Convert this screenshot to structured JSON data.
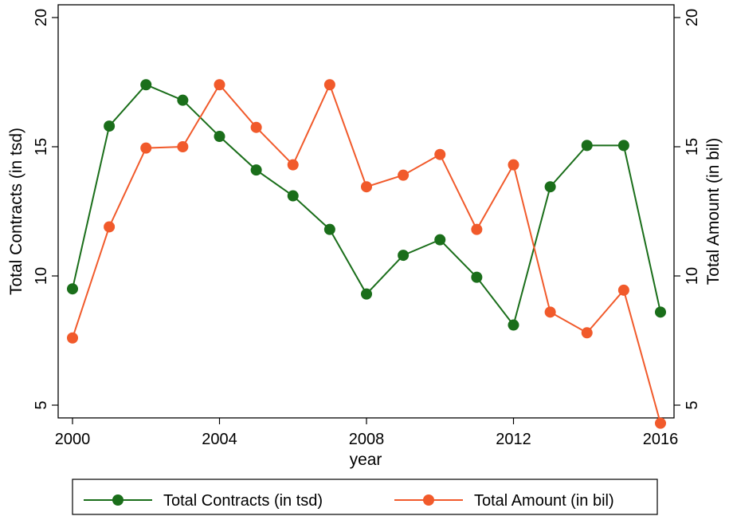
{
  "chart_data": {
    "type": "line",
    "title": "",
    "xlabel": "year",
    "ylabel_left": "Total Contracts (in tsd)",
    "ylabel_right": "Total Amount (in bil)",
    "xlim": [
      2000,
      2016
    ],
    "ylim_left": [
      5,
      20
    ],
    "ylim_right": [
      5,
      20
    ],
    "x_ticks": [
      2000,
      2004,
      2008,
      2012,
      2016
    ],
    "y_ticks_left": [
      5,
      10,
      15,
      20
    ],
    "y_ticks_right": [
      5,
      10,
      15,
      20
    ],
    "grid": false,
    "legend_position": "bottom",
    "x": [
      2000,
      2001,
      2002,
      2003,
      2004,
      2005,
      2006,
      2007,
      2008,
      2009,
      2010,
      2011,
      2012,
      2013,
      2014,
      2015,
      2016
    ],
    "series": [
      {
        "name": "Total Contracts (in tsd)",
        "axis": "left",
        "color": "#1a6e1a",
        "values": [
          9.5,
          15.8,
          17.4,
          16.8,
          15.4,
          14.1,
          13.1,
          11.8,
          9.3,
          10.8,
          11.4,
          9.95,
          8.1,
          13.45,
          15.05,
          15.05,
          8.6
        ]
      },
      {
        "name": "Total Amount (in bil)",
        "axis": "right",
        "color": "#f15a2b",
        "values": [
          7.6,
          11.9,
          14.95,
          15.0,
          17.4,
          15.75,
          14.3,
          17.4,
          13.45,
          13.9,
          14.7,
          11.8,
          14.3,
          8.6,
          7.8,
          9.45,
          4.3
        ]
      }
    ]
  }
}
